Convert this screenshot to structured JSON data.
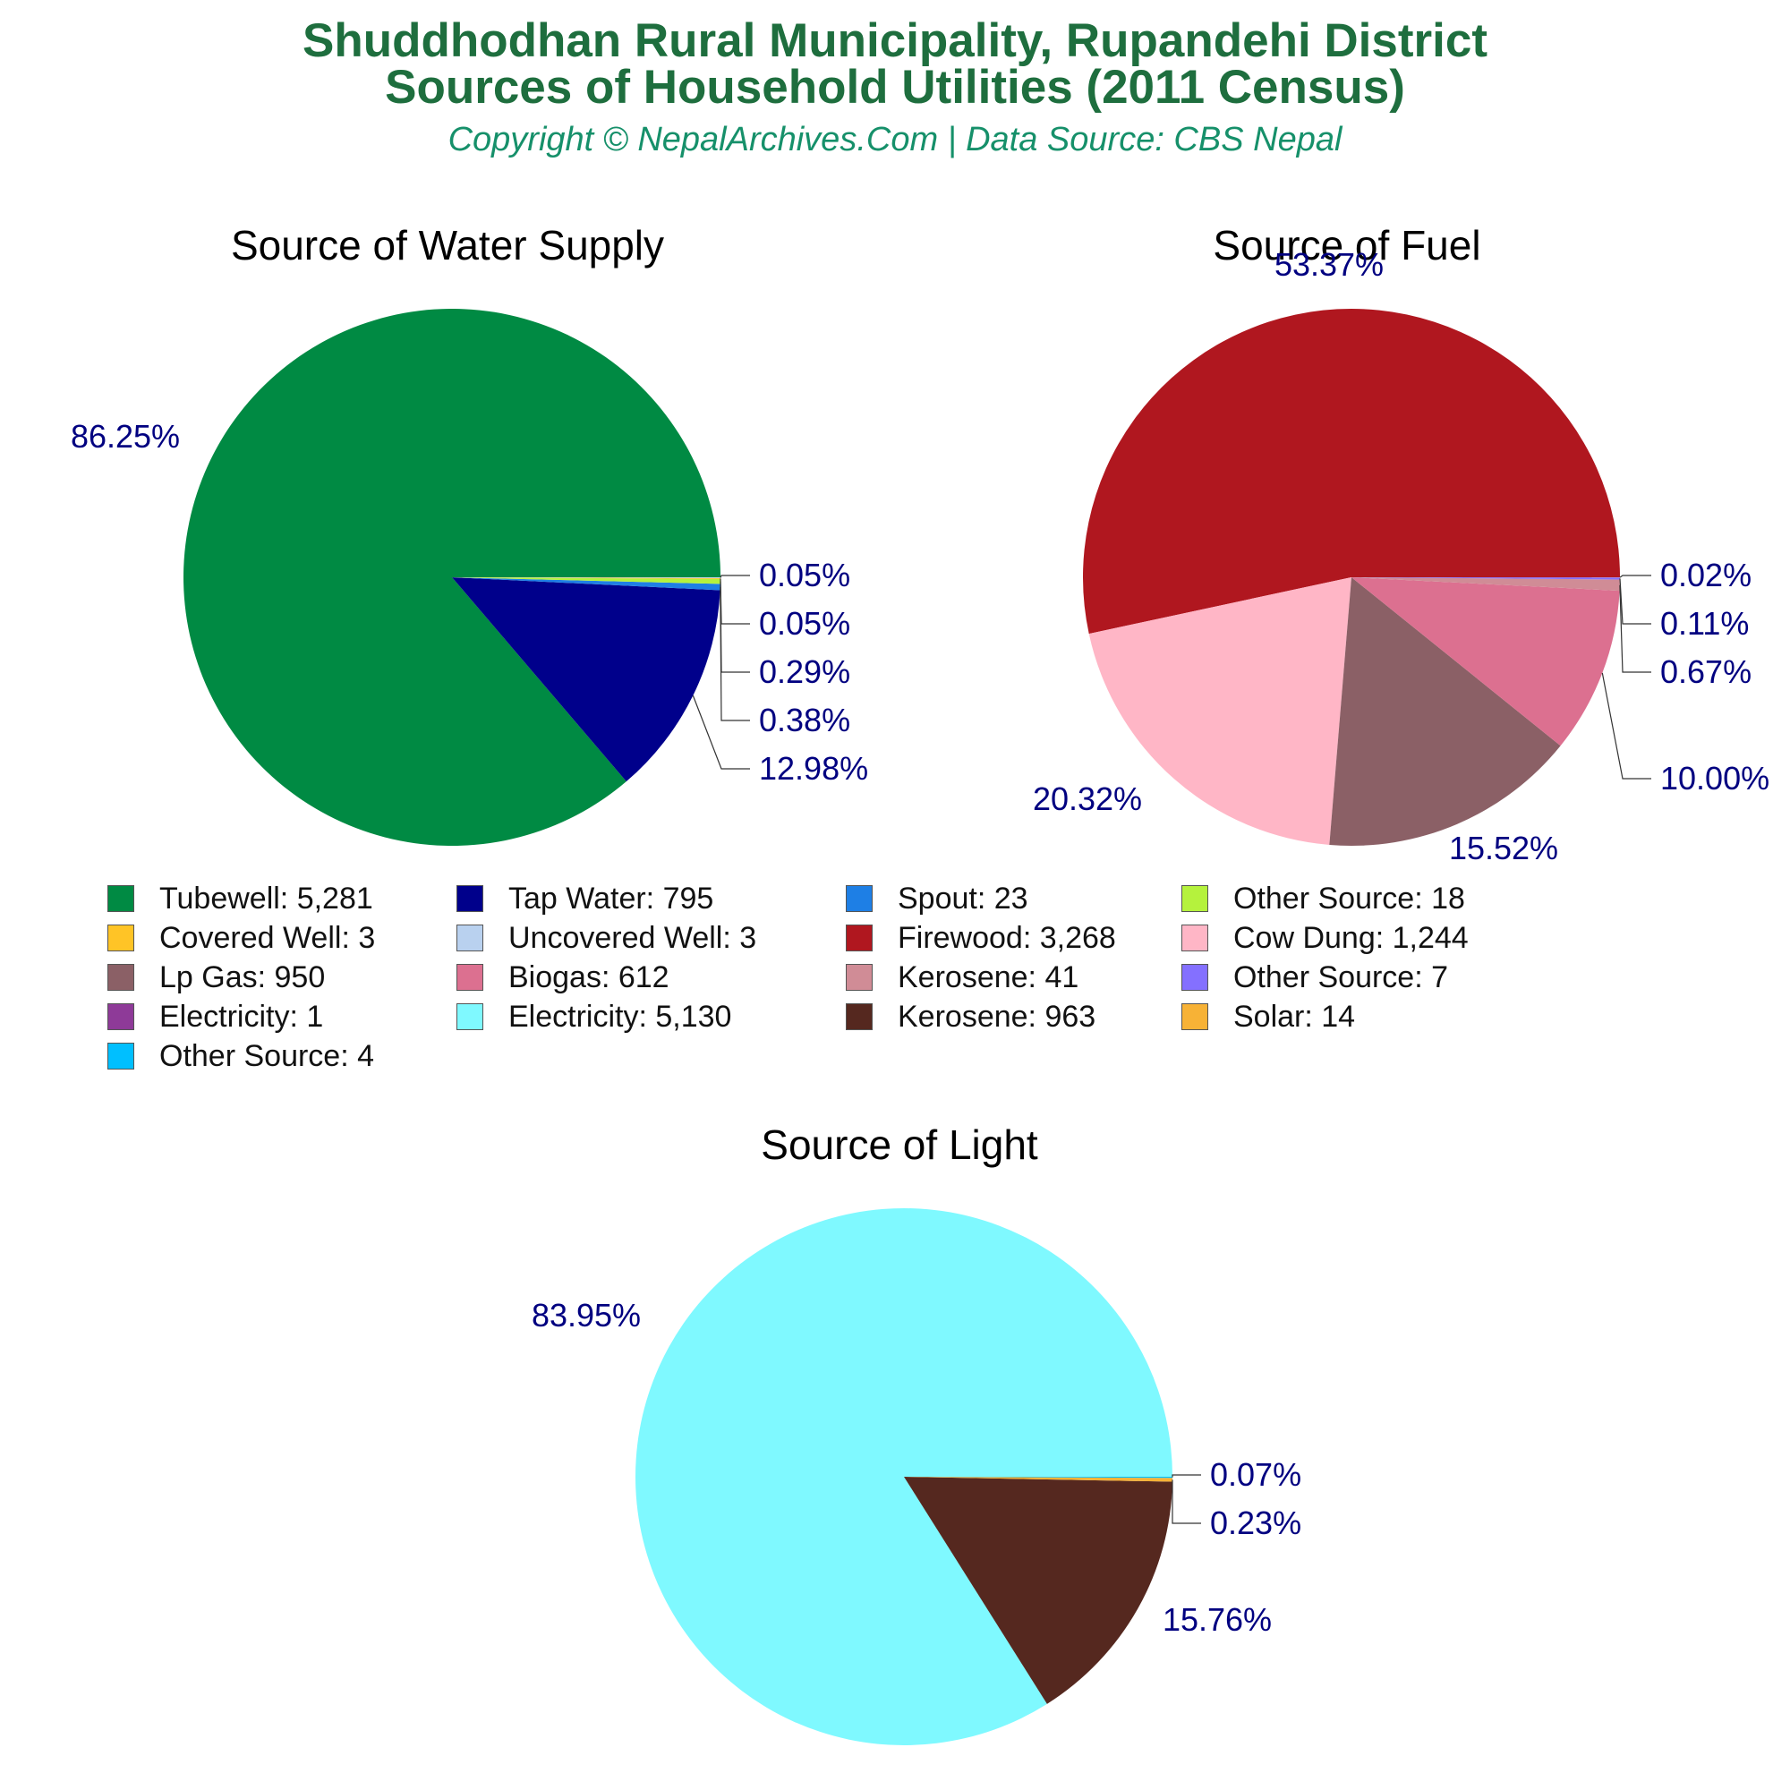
{
  "header": {
    "title_line1": "Shuddhodhan Rural Municipality, Rupandehi District",
    "title_line2": "Sources of Household Utilities (2011 Census)",
    "subtitle": "Copyright © NepalArchives.Com | Data Source: CBS Nepal"
  },
  "colors": {
    "title": "#1e6e3e",
    "subtitle": "#16906a",
    "pct_label": "#000080"
  },
  "legend": [
    {
      "label": "Tubewell: 5,281",
      "color": "#008a43"
    },
    {
      "label": "Tap Water: 795",
      "color": "#00008b"
    },
    {
      "label": "Spout: 23",
      "color": "#1e7fe5"
    },
    {
      "label": "Other Source: 18",
      "color": "#b5f23d"
    },
    {
      "label": "Covered Well: 3",
      "color": "#ffc426"
    },
    {
      "label": "Uncovered Well: 3",
      "color": "#b9d1ef"
    },
    {
      "label": "Firewood: 3,268",
      "color": "#b0171f"
    },
    {
      "label": "Cow Dung: 1,244",
      "color": "#ffb6c6"
    },
    {
      "label": "Lp Gas: 950",
      "color": "#8b6066"
    },
    {
      "label": "Biogas: 612",
      "color": "#dc7090"
    },
    {
      "label": "Kerosene: 41",
      "color": "#d08c96"
    },
    {
      "label": "Other Source: 7",
      "color": "#8470ff"
    },
    {
      "label": "Electricity: 1",
      "color": "#8e3a98"
    },
    {
      "label": "Electricity: 5,130",
      "color": "#7ff9ff"
    },
    {
      "label": "Kerosene: 963",
      "color": "#55281f"
    },
    {
      "label": "Solar: 14",
      "color": "#f7b236"
    },
    {
      "label": "Other Source: 4",
      "color": "#00bfff"
    }
  ],
  "chart_data": [
    {
      "type": "pie",
      "title": "Source of Water Supply",
      "slices": [
        {
          "name": "Tubewell",
          "value": 5281,
          "pct_label": "86.25%",
          "color": "#008a43"
        },
        {
          "name": "Tap Water",
          "value": 795,
          "pct_label": "12.98%",
          "color": "#00008b"
        },
        {
          "name": "Spout",
          "value": 23,
          "pct_label": "0.38%",
          "color": "#1e7fe5"
        },
        {
          "name": "Other Source",
          "value": 18,
          "pct_label": "0.29%",
          "color": "#b5f23d"
        },
        {
          "name": "Covered Well",
          "value": 3,
          "pct_label": "0.05%",
          "color": "#ffc426"
        },
        {
          "name": "Uncovered Well",
          "value": 3,
          "pct_label": "0.05%",
          "color": "#b9d1ef"
        }
      ]
    },
    {
      "type": "pie",
      "title": "Source of Fuel",
      "slices": [
        {
          "name": "Firewood",
          "value": 3268,
          "pct_label": "53.37%",
          "color": "#b0171f"
        },
        {
          "name": "Cow Dung",
          "value": 1244,
          "pct_label": "20.32%",
          "color": "#ffb6c6"
        },
        {
          "name": "Lp Gas",
          "value": 950,
          "pct_label": "15.52%",
          "color": "#8b6066"
        },
        {
          "name": "Biogas",
          "value": 612,
          "pct_label": "10.00%",
          "color": "#dc7090"
        },
        {
          "name": "Kerosene",
          "value": 41,
          "pct_label": "0.67%",
          "color": "#d08c96"
        },
        {
          "name": "Other Source",
          "value": 7,
          "pct_label": "0.11%",
          "color": "#8470ff"
        },
        {
          "name": "Electricity",
          "value": 1,
          "pct_label": "0.02%",
          "color": "#8e3a98"
        }
      ]
    },
    {
      "type": "pie",
      "title": "Source of Light",
      "slices": [
        {
          "name": "Electricity",
          "value": 5130,
          "pct_label": "83.95%",
          "color": "#7ff9ff"
        },
        {
          "name": "Kerosene",
          "value": 963,
          "pct_label": "15.76%",
          "color": "#55281f"
        },
        {
          "name": "Solar",
          "value": 14,
          "pct_label": "0.23%",
          "color": "#f7b236"
        },
        {
          "name": "Other Source",
          "value": 4,
          "pct_label": "0.07%",
          "color": "#00bfff"
        }
      ]
    }
  ]
}
